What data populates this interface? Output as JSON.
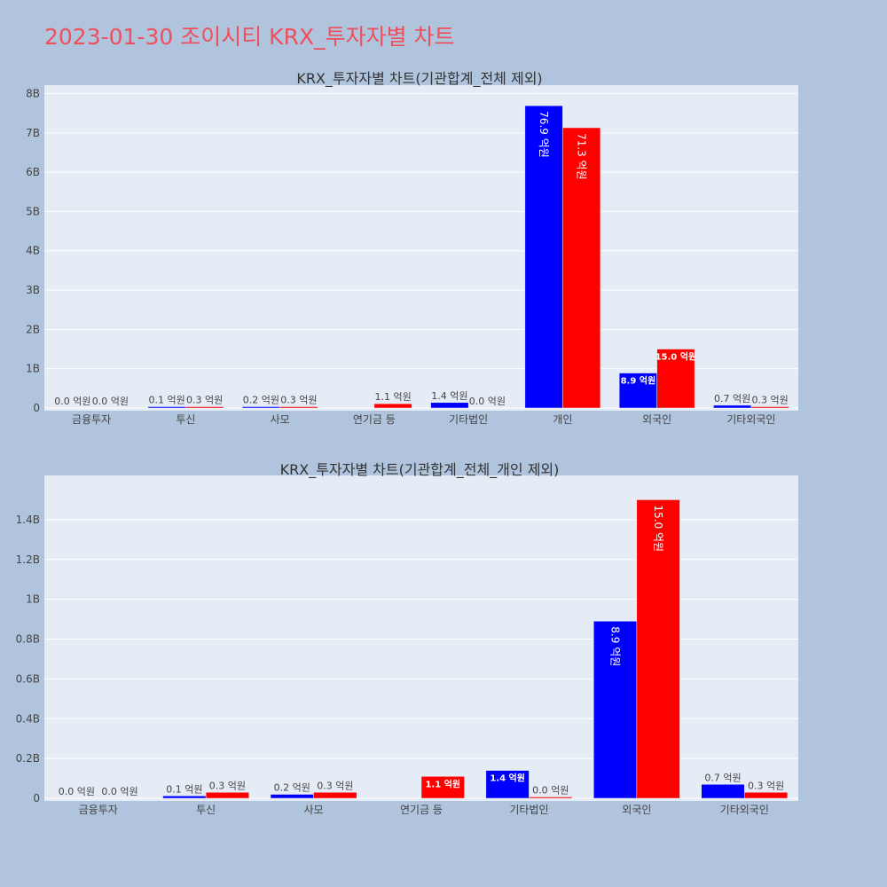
{
  "page": {
    "title": "2023-01-30 조이시티 KRX_투자자별 차트"
  },
  "colors": {
    "background": "#b0c4de",
    "plot": "#e5ecf6",
    "buy": "#0000ff",
    "sell": "#ff0000"
  },
  "chart_data": [
    {
      "type": "bar",
      "title": "KRX_투자자별 차트(기관합계_전체 제외)",
      "categories": [
        "금융투자",
        "투신",
        "사모",
        "연기금 등",
        "기타법인",
        "개인",
        "외국인",
        "기타외국인"
      ],
      "series": [
        {
          "values": [
            0.0,
            0.01,
            0.02,
            0.0,
            0.14,
            7.69,
            0.89,
            0.07
          ],
          "labels": [
            "0.0 억원",
            "0.1 억원",
            "0.2 억원",
            "",
            "1.4 억원",
            "76.9 억원",
            "8.9 억원",
            "0.7 억원"
          ]
        },
        {
          "values": [
            0.0,
            0.03,
            0.03,
            0.11,
            0.0,
            7.13,
            1.5,
            0.03
          ],
          "labels": [
            "0.0 억원",
            "0.3 억원",
            "0.3 억원",
            "1.1 억원",
            "0.0 억원",
            "71.3 억원",
            "15.0 억원",
            "0.3 억원"
          ]
        }
      ],
      "yticks": [
        "0",
        "1B",
        "2B",
        "3B",
        "4B",
        "5B",
        "6B",
        "7B",
        "8B"
      ],
      "ylim": [
        0,
        8.1
      ]
    },
    {
      "type": "bar",
      "title": "KRX_투자자별 차트(기관합계_전체_개인 제외)",
      "categories": [
        "금융투자",
        "투신",
        "사모",
        "연기금 등",
        "기타법인",
        "외국인",
        "기타외국인"
      ],
      "series": [
        {
          "values": [
            0.0,
            0.012,
            0.02,
            0.0,
            0.14,
            0.89,
            0.07
          ],
          "labels": [
            "0.0 억원",
            "0.1 억원",
            "0.2 억원",
            "",
            "1.4 억원",
            "8.9 억원",
            "0.7 억원"
          ]
        },
        {
          "values": [
            0.0,
            0.03,
            0.03,
            0.11,
            0.002,
            1.5,
            0.03
          ],
          "labels": [
            "0.0 억원",
            "0.3 억원",
            "0.3 억원",
            "1.1 억원",
            "0.0 억원",
            "15.0 억원",
            "0.3 억원"
          ]
        }
      ],
      "yticks": [
        "0",
        "0.2B",
        "0.4B",
        "0.6B",
        "0.8B",
        "1B",
        "1.2B",
        "1.4B"
      ],
      "ylim": [
        0,
        1.6
      ]
    }
  ]
}
